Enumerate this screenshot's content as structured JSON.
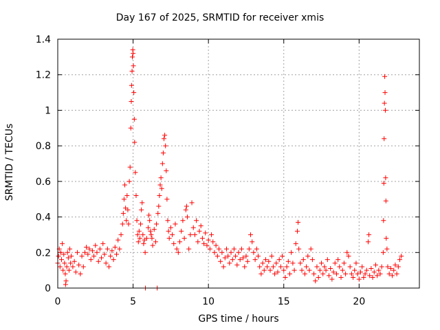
{
  "chart_data": {
    "type": "scatter",
    "title": "Day 167 of 2025, SRMTID for receiver xmis",
    "xlabel": "GPS time / hours",
    "ylabel": "SRMTID / TECUs",
    "xlim": [
      0,
      24
    ],
    "ylim": [
      0,
      1.4
    ],
    "xticks": [
      0,
      5,
      10,
      15,
      20
    ],
    "yticks": [
      0,
      0.2,
      0.4,
      0.6,
      0.8,
      1.0,
      1.2,
      1.4
    ],
    "xtick_labels": [
      "0",
      "5",
      "10",
      "15",
      "20"
    ],
    "ytick_labels": [
      "0",
      "0.2",
      "0.4",
      "0.6",
      "0.8",
      "1",
      "1.2",
      "1.4"
    ],
    "grid": true,
    "marker": "+",
    "color": "#ff0000",
    "series": [
      {
        "name": "SRMTID",
        "points": [
          [
            0.0,
            0.14
          ],
          [
            0.05,
            0.18
          ],
          [
            0.1,
            0.22
          ],
          [
            0.15,
            0.12
          ],
          [
            0.2,
            0.2
          ],
          [
            0.25,
            0.16
          ],
          [
            0.3,
            0.25
          ],
          [
            0.35,
            0.1
          ],
          [
            0.4,
            0.19
          ],
          [
            0.45,
            0.14
          ],
          [
            0.5,
            0.08
          ],
          [
            0.52,
            0.02
          ],
          [
            0.55,
            0.04
          ],
          [
            0.6,
            0.12
          ],
          [
            0.65,
            0.2
          ],
          [
            0.7,
            0.17
          ],
          [
            0.75,
            0.1
          ],
          [
            0.8,
            0.22
          ],
          [
            0.85,
            0.14
          ],
          [
            0.9,
            0.18
          ],
          [
            1.0,
            0.12
          ],
          [
            1.1,
            0.15
          ],
          [
            1.2,
            0.09
          ],
          [
            1.3,
            0.2
          ],
          [
            1.4,
            0.13
          ],
          [
            1.5,
            0.08
          ],
          [
            1.6,
            0.18
          ],
          [
            1.7,
            0.12
          ],
          [
            1.8,
            0.2
          ],
          [
            1.9,
            0.23
          ],
          [
            2.0,
            0.19
          ],
          [
            2.1,
            0.22
          ],
          [
            2.2,
            0.16
          ],
          [
            2.3,
            0.21
          ],
          [
            2.4,
            0.18
          ],
          [
            2.5,
            0.24
          ],
          [
            2.6,
            0.2
          ],
          [
            2.7,
            0.15
          ],
          [
            2.8,
            0.22
          ],
          [
            2.9,
            0.17
          ],
          [
            3.0,
            0.25
          ],
          [
            3.1,
            0.19
          ],
          [
            3.2,
            0.14
          ],
          [
            3.3,
            0.22
          ],
          [
            3.4,
            0.12
          ],
          [
            3.5,
            0.18
          ],
          [
            3.6,
            0.21
          ],
          [
            3.7,
            0.16
          ],
          [
            3.8,
            0.23
          ],
          [
            3.9,
            0.19
          ],
          [
            4.0,
            0.27
          ],
          [
            4.1,
            0.22
          ],
          [
            4.2,
            0.3
          ],
          [
            4.3,
            0.36
          ],
          [
            4.35,
            0.42
          ],
          [
            4.4,
            0.5
          ],
          [
            4.45,
            0.58
          ],
          [
            4.5,
            0.45
          ],
          [
            4.55,
            0.38
          ],
          [
            4.6,
            0.52
          ],
          [
            4.65,
            0.44
          ],
          [
            4.7,
            0.36
          ],
          [
            4.75,
            0.6
          ],
          [
            4.8,
            0.68
          ],
          [
            4.85,
            0.9
          ],
          [
            4.88,
            1.05
          ],
          [
            4.9,
            1.14
          ],
          [
            4.93,
            1.22
          ],
          [
            4.95,
            1.3
          ],
          [
            4.98,
            1.34
          ],
          [
            5.0,
            1.32
          ],
          [
            5.02,
            1.25
          ],
          [
            5.05,
            1.1
          ],
          [
            5.08,
            0.95
          ],
          [
            5.1,
            0.82
          ],
          [
            5.15,
            0.65
          ],
          [
            5.2,
            0.52
          ],
          [
            5.25,
            0.38
          ],
          [
            5.3,
            0.3
          ],
          [
            5.35,
            0.26
          ],
          [
            5.4,
            0.32
          ],
          [
            5.45,
            0.28
          ],
          [
            5.5,
            0.36
          ],
          [
            5.55,
            0.44
          ],
          [
            5.6,
            0.48
          ],
          [
            5.65,
            0.3
          ],
          [
            5.7,
            0.25
          ],
          [
            5.75,
            0.27
          ],
          [
            5.8,
            0.2
          ],
          [
            5.82,
            0.0
          ],
          [
            5.9,
            0.28
          ],
          [
            6.0,
            0.34
          ],
          [
            6.05,
            0.41
          ],
          [
            6.1,
            0.38
          ],
          [
            6.15,
            0.32
          ],
          [
            6.2,
            0.3
          ],
          [
            6.25,
            0.28
          ],
          [
            6.3,
            0.24
          ],
          [
            6.4,
            0.33
          ],
          [
            6.5,
            0.26
          ],
          [
            6.55,
            0.36
          ],
          [
            6.6,
            0.0
          ],
          [
            6.65,
            0.42
          ],
          [
            6.7,
            0.46
          ],
          [
            6.75,
            0.52
          ],
          [
            6.8,
            0.58
          ],
          [
            6.85,
            0.62
          ],
          [
            6.9,
            0.56
          ],
          [
            6.95,
            0.7
          ],
          [
            7.0,
            0.76
          ],
          [
            7.05,
            0.84
          ],
          [
            7.1,
            0.86
          ],
          [
            7.15,
            0.8
          ],
          [
            7.2,
            0.66
          ],
          [
            7.25,
            0.5
          ],
          [
            7.3,
            0.38
          ],
          [
            7.35,
            0.32
          ],
          [
            7.4,
            0.28
          ],
          [
            7.5,
            0.34
          ],
          [
            7.6,
            0.3
          ],
          [
            7.7,
            0.25
          ],
          [
            7.8,
            0.36
          ],
          [
            7.9,
            0.22
          ],
          [
            8.0,
            0.2
          ],
          [
            8.1,
            0.26
          ],
          [
            8.2,
            0.32
          ],
          [
            8.3,
            0.38
          ],
          [
            8.4,
            0.28
          ],
          [
            8.5,
            0.44
          ],
          [
            8.55,
            0.46
          ],
          [
            8.6,
            0.4
          ],
          [
            8.7,
            0.22
          ],
          [
            8.8,
            0.3
          ],
          [
            8.9,
            0.48
          ],
          [
            9.0,
            0.34
          ],
          [
            9.1,
            0.3
          ],
          [
            9.2,
            0.38
          ],
          [
            9.3,
            0.26
          ],
          [
            9.4,
            0.32
          ],
          [
            9.5,
            0.35
          ],
          [
            9.6,
            0.28
          ],
          [
            9.7,
            0.25
          ],
          [
            9.8,
            0.31
          ],
          [
            9.9,
            0.24
          ],
          [
            10.0,
            0.27
          ],
          [
            10.1,
            0.22
          ],
          [
            10.2,
            0.3
          ],
          [
            10.3,
            0.26
          ],
          [
            10.4,
            0.2
          ],
          [
            10.5,
            0.24
          ],
          [
            10.6,
            0.18
          ],
          [
            10.7,
            0.22
          ],
          [
            10.8,
            0.15
          ],
          [
            10.9,
            0.2
          ],
          [
            11.0,
            0.12
          ],
          [
            11.1,
            0.17
          ],
          [
            11.2,
            0.22
          ],
          [
            11.3,
            0.18
          ],
          [
            11.4,
            0.14
          ],
          [
            11.5,
            0.2
          ],
          [
            11.6,
            0.16
          ],
          [
            11.7,
            0.22
          ],
          [
            11.8,
            0.18
          ],
          [
            11.9,
            0.13
          ],
          [
            12.0,
            0.2
          ],
          [
            12.1,
            0.16
          ],
          [
            12.2,
            0.22
          ],
          [
            12.3,
            0.17
          ],
          [
            12.4,
            0.12
          ],
          [
            12.5,
            0.18
          ],
          [
            12.6,
            0.15
          ],
          [
            12.7,
            0.22
          ],
          [
            12.8,
            0.3
          ],
          [
            12.9,
            0.26
          ],
          [
            13.0,
            0.2
          ],
          [
            13.1,
            0.16
          ],
          [
            13.2,
            0.22
          ],
          [
            13.3,
            0.18
          ],
          [
            13.4,
            0.12
          ],
          [
            13.5,
            0.08
          ],
          [
            13.6,
            0.14
          ],
          [
            13.7,
            0.1
          ],
          [
            13.8,
            0.16
          ],
          [
            13.9,
            0.12
          ],
          [
            14.0,
            0.15
          ],
          [
            14.1,
            0.1
          ],
          [
            14.2,
            0.18
          ],
          [
            14.3,
            0.12
          ],
          [
            14.4,
            0.08
          ],
          [
            14.5,
            0.14
          ],
          [
            14.6,
            0.09
          ],
          [
            14.7,
            0.16
          ],
          [
            14.8,
            0.12
          ],
          [
            14.9,
            0.18
          ],
          [
            15.0,
            0.1
          ],
          [
            15.1,
            0.06
          ],
          [
            15.2,
            0.12
          ],
          [
            15.3,
            0.15
          ],
          [
            15.4,
            0.08
          ],
          [
            15.5,
            0.2
          ],
          [
            15.6,
            0.14
          ],
          [
            15.7,
            0.1
          ],
          [
            15.8,
            0.25
          ],
          [
            15.9,
            0.32
          ],
          [
            15.95,
            0.37
          ],
          [
            16.0,
            0.22
          ],
          [
            16.1,
            0.14
          ],
          [
            16.2,
            0.1
          ],
          [
            16.3,
            0.16
          ],
          [
            16.4,
            0.08
          ],
          [
            16.5,
            0.12
          ],
          [
            16.6,
            0.18
          ],
          [
            16.7,
            0.1
          ],
          [
            16.8,
            0.22
          ],
          [
            16.9,
            0.16
          ],
          [
            17.0,
            0.08
          ],
          [
            17.1,
            0.04
          ],
          [
            17.2,
            0.12
          ],
          [
            17.3,
            0.06
          ],
          [
            17.4,
            0.1
          ],
          [
            17.5,
            0.14
          ],
          [
            17.6,
            0.08
          ],
          [
            17.7,
            0.12
          ],
          [
            17.8,
            0.1
          ],
          [
            17.9,
            0.16
          ],
          [
            18.0,
            0.07
          ],
          [
            18.1,
            0.11
          ],
          [
            18.2,
            0.05
          ],
          [
            18.3,
            0.09
          ],
          [
            18.4,
            0.14
          ],
          [
            18.5,
            0.08
          ],
          [
            18.6,
            0.16
          ],
          [
            18.7,
            0.12
          ],
          [
            18.8,
            0.06
          ],
          [
            18.9,
            0.1
          ],
          [
            19.0,
            0.14
          ],
          [
            19.1,
            0.08
          ],
          [
            19.2,
            0.2
          ],
          [
            19.3,
            0.18
          ],
          [
            19.4,
            0.12
          ],
          [
            19.5,
            0.08
          ],
          [
            19.6,
            0.06
          ],
          [
            19.7,
            0.1
          ],
          [
            19.8,
            0.14
          ],
          [
            19.9,
            0.08
          ],
          [
            20.0,
            0.05
          ],
          [
            20.1,
            0.09
          ],
          [
            20.2,
            0.12
          ],
          [
            20.3,
            0.06
          ],
          [
            20.4,
            0.08
          ],
          [
            20.5,
            0.1
          ],
          [
            20.6,
            0.26
          ],
          [
            20.65,
            0.3
          ],
          [
            20.7,
            0.07
          ],
          [
            20.8,
            0.11
          ],
          [
            20.9,
            0.06
          ],
          [
            21.0,
            0.09
          ],
          [
            21.1,
            0.13
          ],
          [
            21.2,
            0.07
          ],
          [
            21.3,
            0.1
          ],
          [
            21.4,
            0.08
          ],
          [
            21.5,
            0.12
          ],
          [
            21.6,
            0.2
          ],
          [
            21.62,
            0.38
          ],
          [
            21.64,
            0.59
          ],
          [
            21.66,
            0.84
          ],
          [
            21.68,
            1.04
          ],
          [
            21.7,
            1.19
          ],
          [
            21.72,
            1.1
          ],
          [
            21.74,
            1.0
          ],
          [
            21.76,
            0.62
          ],
          [
            21.78,
            0.49
          ],
          [
            21.8,
            0.28
          ],
          [
            21.85,
            0.22
          ],
          [
            21.9,
            0.12
          ],
          [
            22.0,
            0.08
          ],
          [
            22.1,
            0.11
          ],
          [
            22.2,
            0.07
          ],
          [
            22.3,
            0.1
          ],
          [
            22.4,
            0.13
          ],
          [
            22.5,
            0.08
          ],
          [
            22.6,
            0.12
          ],
          [
            22.7,
            0.16
          ],
          [
            22.8,
            0.18
          ]
        ]
      }
    ]
  }
}
